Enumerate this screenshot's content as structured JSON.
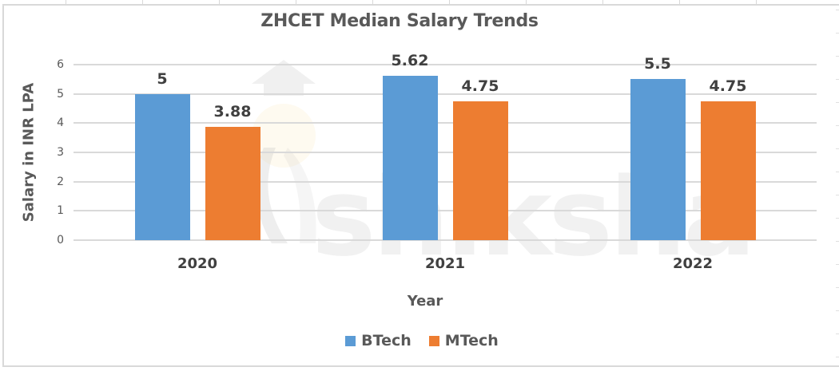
{
  "chart_data": {
    "type": "bar",
    "title": "ZHCET Median Salary Trends",
    "xlabel": "Year",
    "ylabel": "Salary in INR LPA",
    "categories": [
      "2020",
      "2021",
      "2022"
    ],
    "series": [
      {
        "name": "BTech",
        "color": "#5b9bd5",
        "values": [
          5,
          5.62,
          5.5
        ]
      },
      {
        "name": "MTech",
        "color": "#ed7d31",
        "values": [
          3.88,
          4.75,
          4.75
        ]
      }
    ],
    "data_labels": {
      "BTech": [
        "5",
        "5.62",
        "5.5"
      ],
      "MTech": [
        "3.88",
        "4.75",
        "4.75"
      ]
    },
    "yticks": [
      "0",
      "1",
      "2",
      "3",
      "4",
      "5",
      "6"
    ],
    "ylim": [
      0,
      6
    ],
    "grid": true,
    "legend_position": "bottom"
  },
  "watermark": {
    "text": "shiksha"
  }
}
